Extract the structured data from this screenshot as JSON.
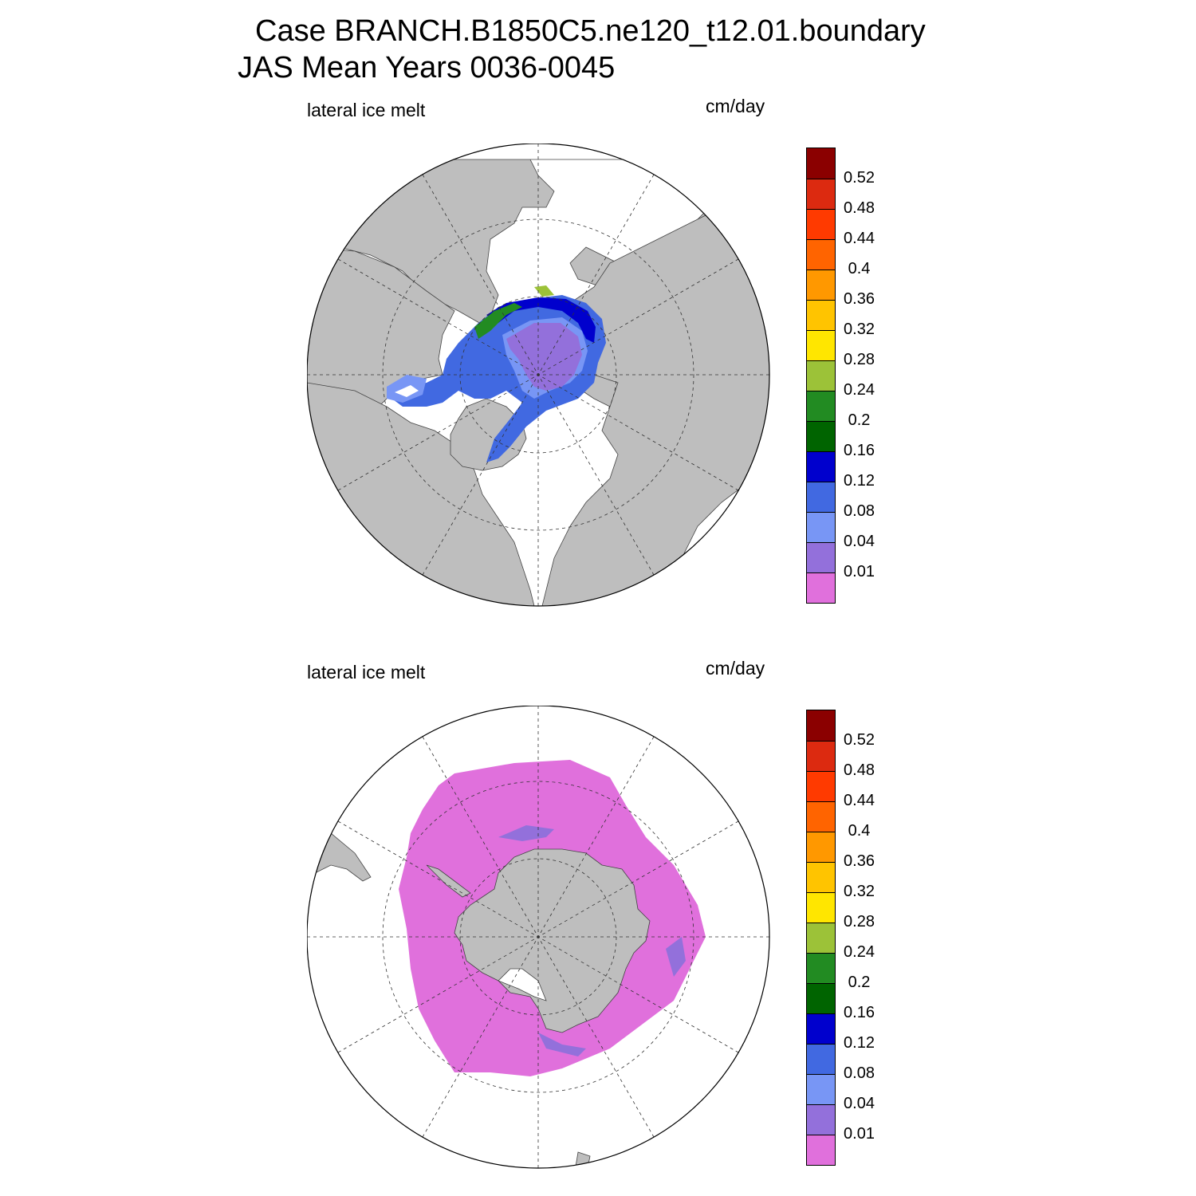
{
  "header": {
    "title_line1": "Case BRANCH.B1850C5.ne120_t12.01.boundary",
    "title_line2": "JAS Mean    Years 0036-0045"
  },
  "panels": [
    {
      "hemisphere": "north",
      "label": "lateral ice melt",
      "units": "cm/day"
    },
    {
      "hemisphere": "south",
      "label": "lateral ice melt",
      "units": "cm/day"
    }
  ],
  "colorbar": {
    "colors": [
      "#8b0000",
      "#dc2a10",
      "#ff3a00",
      "#ff6400",
      "#ff9800",
      "#ffc400",
      "#ffe600",
      "#9cc238",
      "#228b22",
      "#006400",
      "#0000cd",
      "#4169e1",
      "#7896f5",
      "#9370db",
      "#e070dc"
    ],
    "labels": [
      "0.52",
      "0.48",
      "0.44",
      "0.4",
      "0.36",
      "0.32",
      "0.28",
      "0.24",
      "0.2",
      "0.16",
      "0.12",
      "0.08",
      "0.04",
      "0.01"
    ]
  },
  "styles": {
    "land_color": "#bebebe",
    "ocean_color": "#ffffff",
    "grid_style": "dashed"
  }
}
